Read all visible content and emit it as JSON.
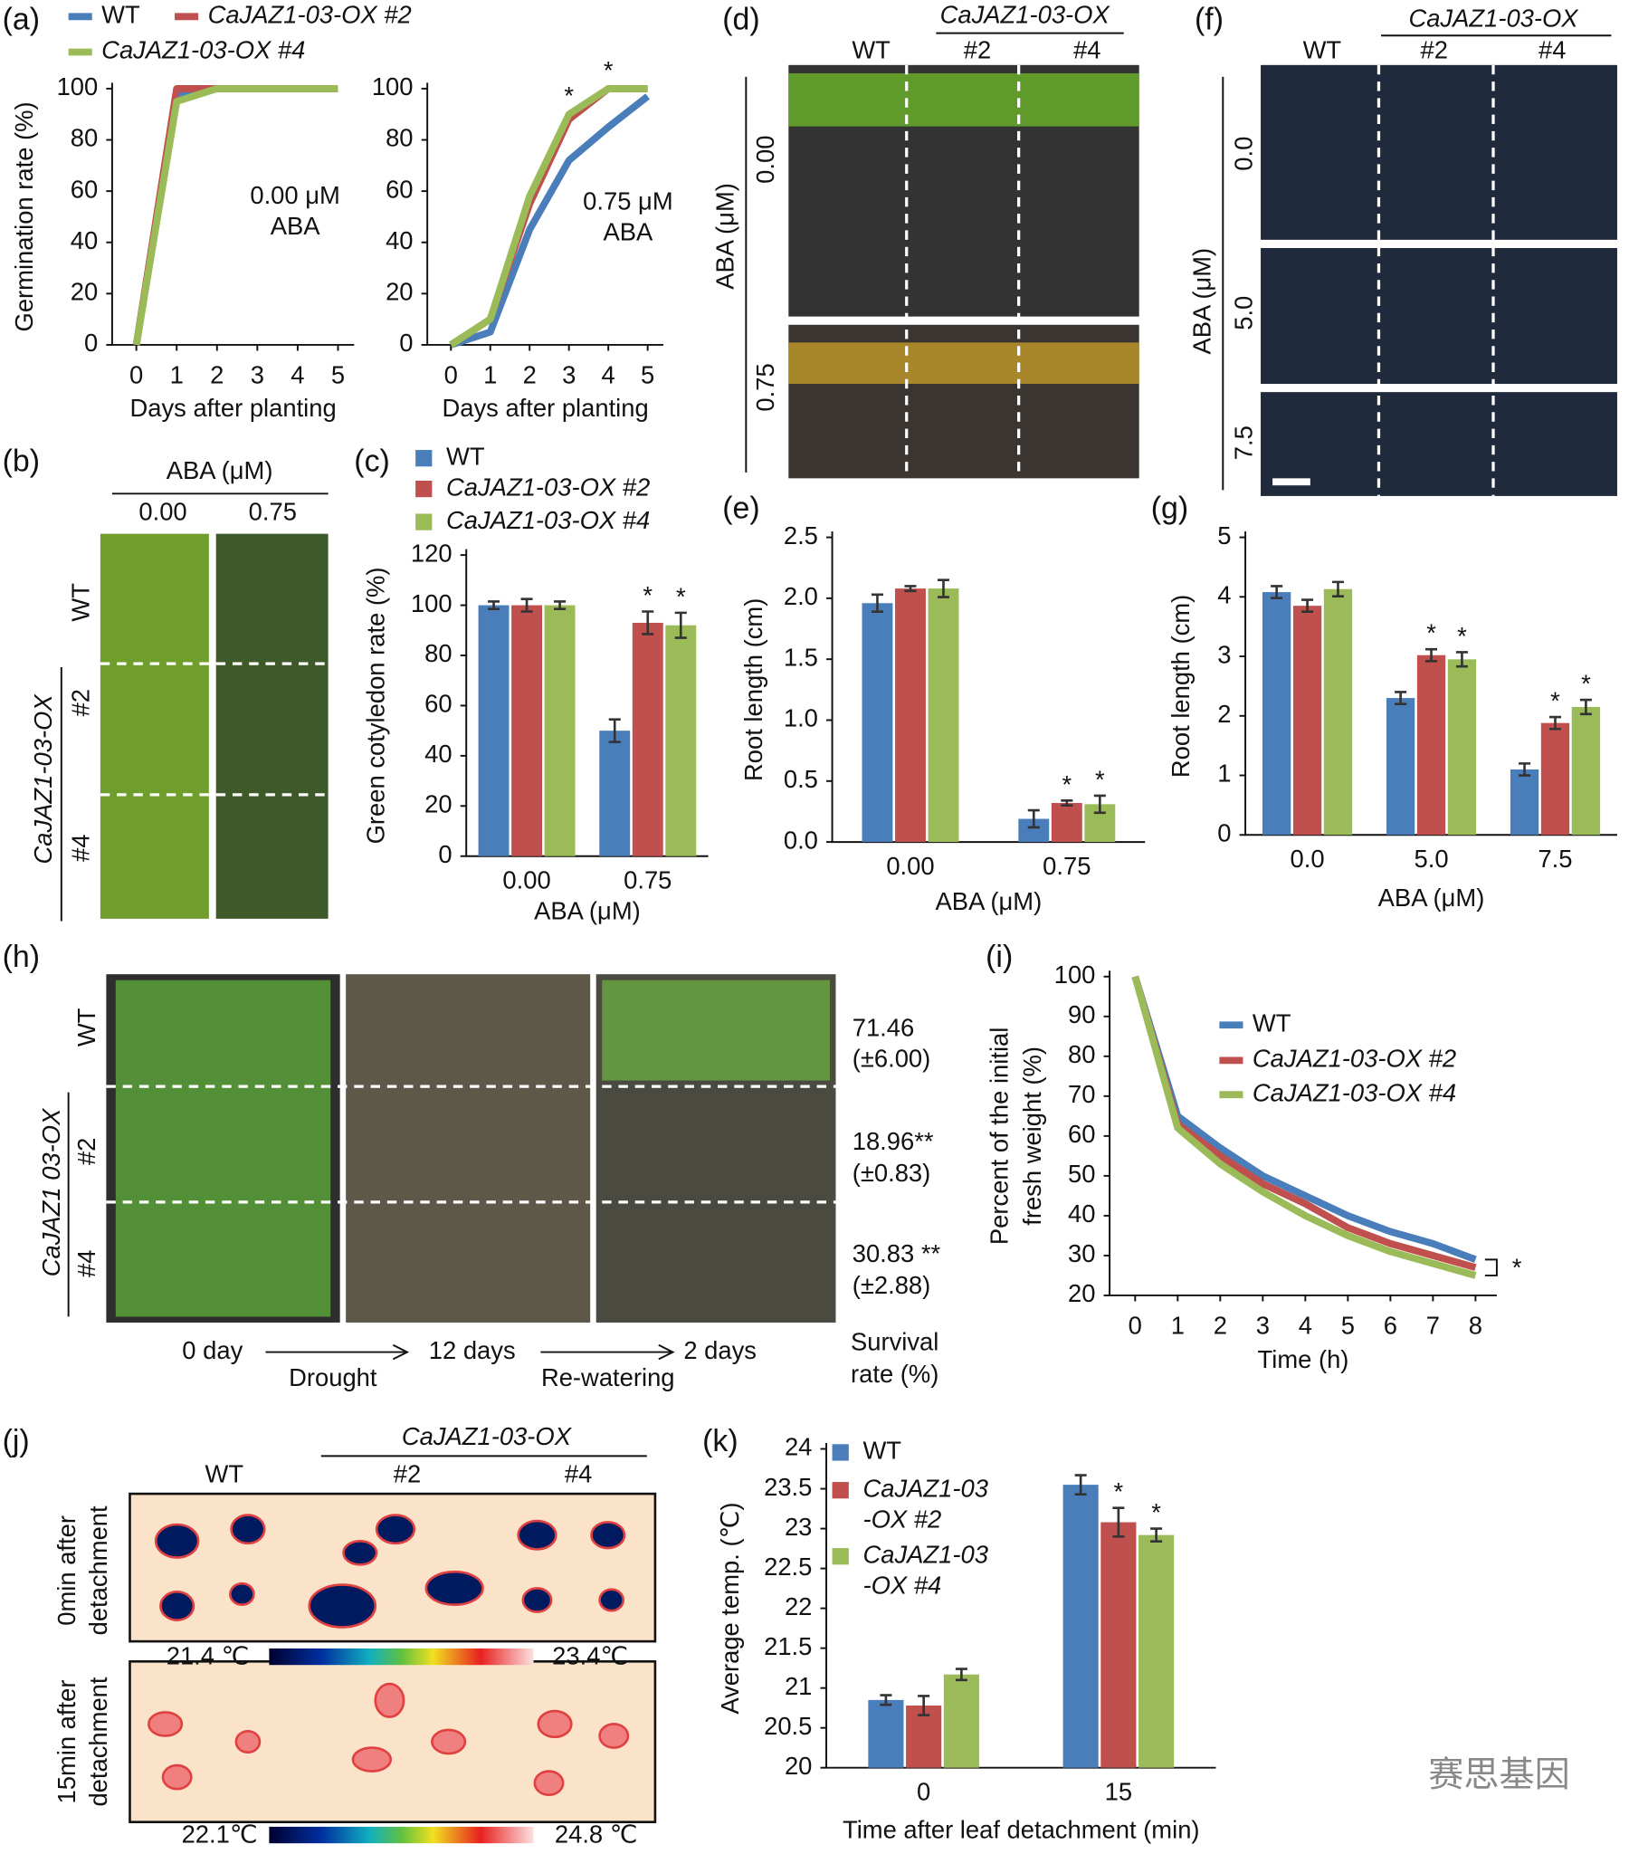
{
  "chart_data": [
    {
      "type": "line",
      "xlabel": "Days after planting",
      "ylabel": "Germination rate (%)",
      "annotation": [
        "0.00 μM",
        "ABA"
      ],
      "x": [
        0,
        1,
        2,
        3,
        4,
        5
      ],
      "xlim": [
        -0.6,
        5.4
      ],
      "xticks": [
        0,
        1,
        2,
        3,
        4,
        5
      ],
      "ylim": [
        0,
        100
      ],
      "yticks": [
        0,
        20,
        40,
        60,
        80,
        100
      ],
      "series": [
        {
          "name": "WT",
          "color": "#4a7ebb",
          "values": [
            0,
            98,
            100,
            100,
            100,
            100
          ]
        },
        {
          "name": "CaJAZ1-03-OX #2",
          "color": "#c0504d",
          "values": [
            0,
            100,
            100,
            100,
            100,
            100
          ]
        },
        {
          "name": "CaJAZ1-03-OX #4",
          "color": "#9bbb59",
          "values": [
            0,
            95,
            100,
            100,
            100,
            100
          ]
        }
      ]
    },
    {
      "type": "line",
      "xlabel": "Days after planting",
      "annotation": [
        "0.75 μM",
        "ABA"
      ],
      "x": [
        0,
        1,
        2,
        3,
        4,
        5
      ],
      "xlim": [
        -0.6,
        5.4
      ],
      "xticks": [
        0,
        1,
        2,
        3,
        4,
        5
      ],
      "ylim": [
        0,
        100
      ],
      "yticks": [
        0,
        20,
        40,
        60,
        80,
        100
      ],
      "series": [
        {
          "color": "#4a7ebb",
          "values": [
            0,
            5,
            45,
            72,
            85,
            97
          ]
        },
        {
          "color": "#c0504d",
          "values": [
            0,
            10,
            55,
            88,
            100,
            100
          ]
        },
        {
          "color": "#9bbb59",
          "values": [
            0,
            10,
            58,
            90,
            100,
            100
          ],
          "sig": [
            null,
            null,
            null,
            "*",
            "*",
            null
          ]
        }
      ]
    },
    {
      "type": "bar",
      "xlabel": "ABA (μM)",
      "ylabel": "Green cotyledon rate (%)",
      "categories": [
        "0.00",
        "0.75"
      ],
      "ylim": [
        0,
        120
      ],
      "yticks": [
        0,
        20,
        40,
        60,
        80,
        100,
        120
      ],
      "series": [
        {
          "name": "WT",
          "color": "#4a7ebb",
          "values": [
            100,
            50
          ],
          "errors": [
            1.5,
            4.5
          ]
        },
        {
          "name": "CaJAZ1-03-OX #2",
          "color": "#c0504d",
          "values": [
            100,
            93
          ],
          "errors": [
            2.5,
            4.5
          ],
          "sig": [
            null,
            "*"
          ]
        },
        {
          "name": "CaJAZ1-03-OX #4",
          "color": "#9bbb59",
          "values": [
            100,
            92
          ],
          "errors": [
            1.5,
            5
          ],
          "sig": [
            null,
            "*"
          ]
        }
      ]
    },
    {
      "type": "bar",
      "xlabel": "ABA (μM)",
      "ylabel": "Root length (cm)",
      "categories": [
        "0.00",
        "0.75"
      ],
      "ylim": [
        0,
        2.5
      ],
      "yticks": [
        {
          "value": 0,
          "label": "0.0"
        },
        0.5,
        {
          "value": 1,
          "label": "1.0"
        },
        1.5,
        {
          "value": 2,
          "label": "2.0"
        },
        2.5
      ],
      "series": [
        {
          "color": "#4a7ebb",
          "values": [
            1.96,
            0.19
          ],
          "errors": [
            0.07,
            0.07
          ]
        },
        {
          "color": "#c0504d",
          "values": [
            2.08,
            0.32
          ],
          "errors": [
            0.02,
            0.02
          ],
          "sig": [
            null,
            "*"
          ]
        },
        {
          "color": "#9bbb59",
          "values": [
            2.08,
            0.31
          ],
          "errors": [
            0.07,
            0.07
          ],
          "sig": [
            null,
            "*"
          ]
        }
      ]
    },
    {
      "type": "bar",
      "xlabel": "ABA (μM)",
      "ylabel": "Root length (cm)",
      "categories": [
        "0.0",
        "5.0",
        "7.5"
      ],
      "ylim": [
        0,
        5
      ],
      "yticks": [
        0,
        1,
        2,
        3,
        4,
        5
      ],
      "series": [
        {
          "color": "#4a7ebb",
          "values": [
            4.08,
            2.3,
            1.1
          ],
          "errors": [
            0.1,
            0.1,
            0.1
          ]
        },
        {
          "color": "#c0504d",
          "values": [
            3.85,
            3.02,
            1.88
          ],
          "errors": [
            0.1,
            0.1,
            0.1
          ],
          "sig": [
            null,
            "*",
            "*"
          ]
        },
        {
          "color": "#9bbb59",
          "values": [
            4.13,
            2.95,
            2.15
          ],
          "errors": [
            0.12,
            0.12,
            0.12
          ],
          "sig": [
            null,
            "*",
            "*"
          ]
        }
      ]
    },
    {
      "type": "line",
      "xlabel": "Time (h)",
      "ylabel": [
        "Percent of the initial",
        "fresh weight (%)"
      ],
      "annotation": [
        "*"
      ],
      "x": [
        0,
        1,
        2,
        3,
        4,
        5,
        6,
        7,
        8
      ],
      "xlim": [
        -0.6,
        8.5
      ],
      "xticks": [
        0,
        1,
        2,
        3,
        4,
        5,
        6,
        7,
        8
      ],
      "ylim": [
        20,
        100
      ],
      "yticks": [
        20,
        30,
        40,
        50,
        60,
        70,
        80,
        90,
        100
      ],
      "series": [
        {
          "name": "WT",
          "color": "#4a7ebb",
          "values": [
            100,
            65,
            57,
            50,
            45,
            40,
            36,
            33,
            29
          ]
        },
        {
          "name": "CaJAZ1-03-OX #2",
          "color": "#c0504d",
          "values": [
            100,
            63,
            55,
            48,
            43,
            37,
            33,
            30,
            27
          ]
        },
        {
          "name": "CaJAZ1-03-OX #4",
          "color": "#9bbb59",
          "values": [
            100,
            62,
            53,
            46,
            40,
            35,
            31,
            28,
            25
          ]
        }
      ]
    },
    {
      "type": "bar",
      "xlabel": "Time after leaf detachment (min)",
      "ylabel": "Average temp. (℃)",
      "categories": [
        "0",
        "15"
      ],
      "ylim": [
        20,
        24
      ],
      "yticks": [
        20,
        20.5,
        21,
        21.5,
        22,
        22.5,
        23,
        23.5,
        24
      ],
      "series": [
        {
          "name": [
            "WT"
          ],
          "color": "#4a7ebb",
          "values": [
            20.85,
            23.55
          ],
          "errors": [
            0.06,
            0.12
          ]
        },
        {
          "name": [
            "CaJAZ1-03",
            "-OX #2"
          ],
          "color": "#c0504d",
          "values": [
            20.78,
            23.08
          ],
          "errors": [
            0.12,
            0.18
          ],
          "sig": [
            null,
            "*"
          ]
        },
        {
          "name": [
            "CaJAZ1-03",
            "-OX #4"
          ],
          "color": "#9bbb59",
          "values": [
            21.17,
            22.92
          ],
          "errors": [
            0.07,
            0.08
          ],
          "sig": [
            null,
            "*"
          ]
        }
      ]
    }
  ],
  "panel_labels": [
    "(a)",
    "(b)",
    "(c)",
    "(d)",
    "(e)",
    "(f)",
    "(g)",
    "(h)",
    "(i)",
    "(j)",
    "(k)"
  ],
  "b": {
    "header": "ABA (μM)",
    "columns": [
      "0.00",
      "0.75"
    ],
    "rows": [
      "WT",
      "#2",
      "#4"
    ],
    "group": "CaJAZ1-03-OX"
  },
  "d": {
    "group": "CaJAZ1-03-OX",
    "columns": [
      "WT",
      "#2",
      "#4"
    ],
    "axis": "ABA (μM)",
    "rows": [
      "0.00",
      "0.75"
    ]
  },
  "f": {
    "group": "CaJAZ1-03-OX",
    "columns": [
      "WT",
      "#2",
      "#4"
    ],
    "axis": "ABA (μM)",
    "rows": [
      "0.0",
      "5.0",
      "7.5"
    ]
  },
  "h": {
    "rows": [
      "WT",
      "#2",
      "#4"
    ],
    "group": "CaJAZ1 03-OX",
    "survival": [
      [
        "71.46",
        "(±6.00)"
      ],
      [
        "18.96**",
        "(±0.83)"
      ],
      [
        "30.83 **",
        "(±2.88)"
      ]
    ],
    "timeline": [
      "0 day",
      "Drought",
      "12 days",
      "Re-watering",
      "2 days"
    ],
    "survival_label": [
      "Survival",
      "rate (%)"
    ]
  },
  "j": {
    "group": "CaJAZ1-03-OX",
    "columns": [
      "WT",
      "#2",
      "#4"
    ],
    "rows": [
      [
        "0min after",
        "detachment"
      ],
      [
        "15min after",
        "detachment"
      ]
    ],
    "scales": [
      [
        "21.4 ℃",
        "23.4℃"
      ],
      [
        "22.1℃",
        "24.8 ℃"
      ]
    ]
  },
  "watermark": "赛思基因"
}
